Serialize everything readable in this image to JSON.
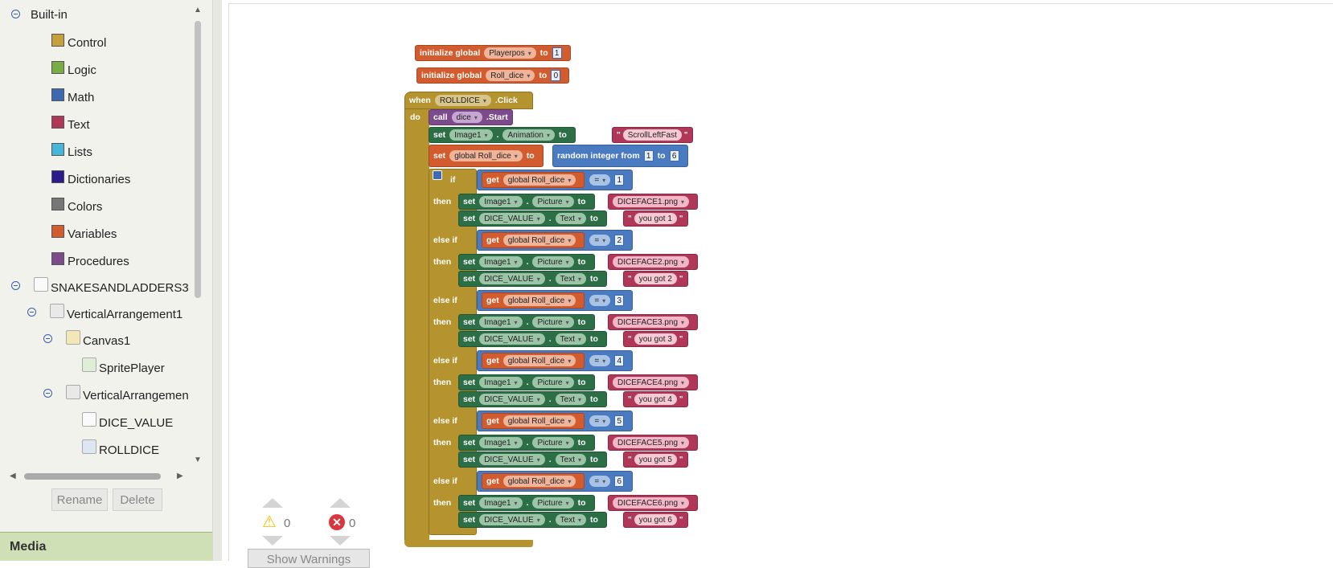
{
  "palette": {
    "root_label": "Built-in",
    "items": [
      {
        "label": "Control",
        "color": "#c8a03b"
      },
      {
        "label": "Logic",
        "color": "#78ad44"
      },
      {
        "label": "Math",
        "color": "#3d6ab1"
      },
      {
        "label": "Text",
        "color": "#b03758"
      },
      {
        "label": "Lists",
        "color": "#45b6d8"
      },
      {
        "label": "Dictionaries",
        "color": "#2a1a8c"
      },
      {
        "label": "Colors",
        "color": "#777777"
      },
      {
        "label": "Variables",
        "color": "#d35c2f"
      },
      {
        "label": "Procedures",
        "color": "#7d4b8c"
      }
    ]
  },
  "components": {
    "screen": "SNAKESANDLADDERS3",
    "vertical1": "VerticalArrangement1",
    "canvas": "Canvas1",
    "sprite": "SpritePlayer",
    "vertical2": "VerticalArrangemen",
    "label": "DICE_VALUE",
    "button": "ROLLDICE"
  },
  "buttons": {
    "rename": "Rename",
    "delete": "Delete"
  },
  "media_label": "Media",
  "warnings": {
    "warn_count": "0",
    "error_count": "0",
    "show_label": "Show Warnings"
  },
  "blocks": {
    "init1": {
      "kw": "initialize global",
      "name": "Playerpos",
      "to": "to",
      "value": "1"
    },
    "init2": {
      "kw": "initialize global",
      "name": "Roll_dice",
      "to": "to",
      "value": "0"
    },
    "event": {
      "when": "when",
      "component": "ROLLDICE",
      "event": ".Click",
      "do": "do"
    },
    "call": {
      "kw": "call",
      "component": "dice",
      "method": ".Start"
    },
    "set_anim": {
      "kw": "set",
      "component": "Image1",
      "dot": ".",
      "prop": "Animation",
      "to": "to",
      "value": "ScrollLeftFast"
    },
    "set_roll": {
      "kw": "set",
      "var": "global Roll_dice",
      "to": "to",
      "random": "random integer from",
      "from": "1",
      "rto": "to",
      "max": "6"
    },
    "if_kw": "if",
    "elseif_kw": "else if",
    "then_kw": "then",
    "get_kw": "get",
    "get_var": "global Roll_dice",
    "op": "=",
    "img_comp": "Image1",
    "img_prop": "Picture",
    "lbl_comp": "DICE_VALUE",
    "lbl_prop": "Text",
    "set_kw": "set",
    "dot": ".",
    "to_kw": "to",
    "branches": [
      {
        "num": "1",
        "face": "DICEFACE1.png",
        "text": "you got 1"
      },
      {
        "num": "2",
        "face": "DICEFACE2.png",
        "text": "you got 2"
      },
      {
        "num": "3",
        "face": "DICEFACE3.png",
        "text": "you got 3"
      },
      {
        "num": "4",
        "face": "DICEFACE4.png",
        "text": "you got 4"
      },
      {
        "num": "5",
        "face": "DICEFACE5.png",
        "text": "you got 5"
      },
      {
        "num": "6",
        "face": "DICEFACE6.png",
        "text": "you got 6"
      }
    ]
  }
}
